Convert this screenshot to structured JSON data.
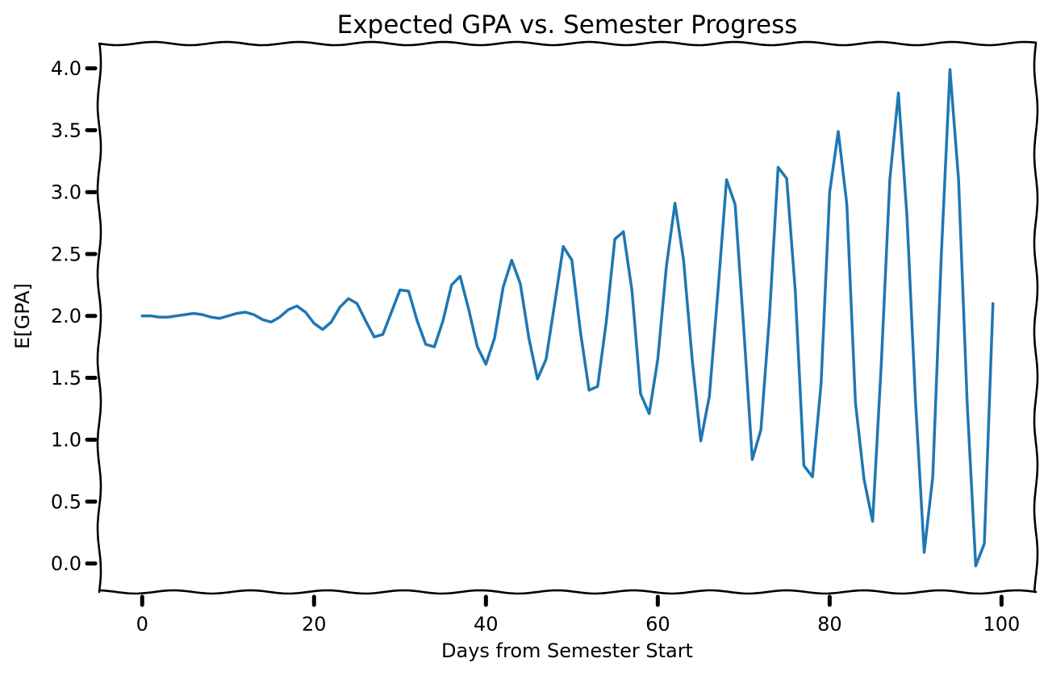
{
  "chart_data": {
    "type": "line",
    "title": "Expected GPA vs. Semester Progress",
    "xlabel": "Days from Semester Start",
    "ylabel": "E[GPA]",
    "xlim": [
      -5,
      104
    ],
    "ylim": [
      -0.23,
      4.2
    ],
    "xticks": [
      0,
      20,
      40,
      60,
      80,
      100
    ],
    "xtick_labels": [
      "0",
      "20",
      "40",
      "60",
      "80",
      "100"
    ],
    "yticks": [
      0.0,
      0.5,
      1.0,
      1.5,
      2.0,
      2.5,
      3.0,
      3.5,
      4.0
    ],
    "ytick_labels": [
      "0.0",
      "0.5",
      "1.0",
      "1.5",
      "2.0",
      "2.5",
      "3.0",
      "3.5",
      "4.0"
    ],
    "grid": false,
    "style": "xkcd",
    "series": [
      {
        "color": "#1f77b4",
        "x": [
          0,
          1,
          2,
          3,
          4,
          5,
          6,
          7,
          8,
          9,
          10,
          11,
          12,
          13,
          14,
          15,
          16,
          17,
          18,
          19,
          20,
          21,
          22,
          23,
          24,
          25,
          26,
          27,
          28,
          29,
          30,
          31,
          32,
          33,
          34,
          35,
          36,
          37,
          38,
          39,
          40,
          41,
          42,
          43,
          44,
          45,
          46,
          47,
          48,
          49,
          50,
          51,
          52,
          53,
          54,
          55,
          56,
          57,
          58,
          59,
          60,
          61,
          62,
          63,
          64,
          65,
          66,
          67,
          68,
          69,
          70,
          71,
          72,
          73,
          74,
          75,
          76,
          77,
          78,
          79,
          80,
          81,
          82,
          83,
          84,
          85,
          86,
          87,
          88,
          89,
          90,
          91,
          92,
          93,
          94,
          95,
          96,
          97,
          98,
          99
        ],
        "y": [
          2.0,
          2.0,
          1.99,
          1.99,
          2.0,
          2.01,
          2.02,
          2.01,
          1.99,
          1.98,
          2.0,
          2.02,
          2.03,
          2.01,
          1.97,
          1.95,
          1.99,
          2.05,
          2.08,
          2.03,
          1.94,
          1.89,
          1.95,
          2.07,
          2.14,
          2.1,
          1.96,
          1.83,
          1.85,
          2.03,
          2.21,
          2.2,
          1.96,
          1.77,
          1.75,
          1.96,
          2.25,
          2.32,
          2.05,
          1.75,
          1.61,
          1.82,
          2.23,
          2.45,
          2.26,
          1.82,
          1.49,
          1.65,
          2.1,
          2.56,
          2.45,
          1.87,
          1.4,
          1.43,
          1.95,
          2.62,
          2.68,
          2.2,
          1.37,
          1.21,
          1.65,
          2.4,
          2.91,
          2.45,
          1.65,
          0.99,
          1.35,
          2.2,
          3.1,
          2.9,
          1.9,
          0.84,
          1.08,
          2.0,
          3.2,
          3.11,
          2.2,
          0.79,
          0.7,
          1.45,
          3.0,
          3.49,
          2.9,
          1.3,
          0.68,
          0.34,
          1.6,
          3.1,
          3.8,
          2.8,
          1.3,
          0.09,
          0.7,
          2.5,
          3.99,
          3.1,
          1.3,
          -0.02,
          0.16,
          2.1
        ]
      }
    ]
  }
}
